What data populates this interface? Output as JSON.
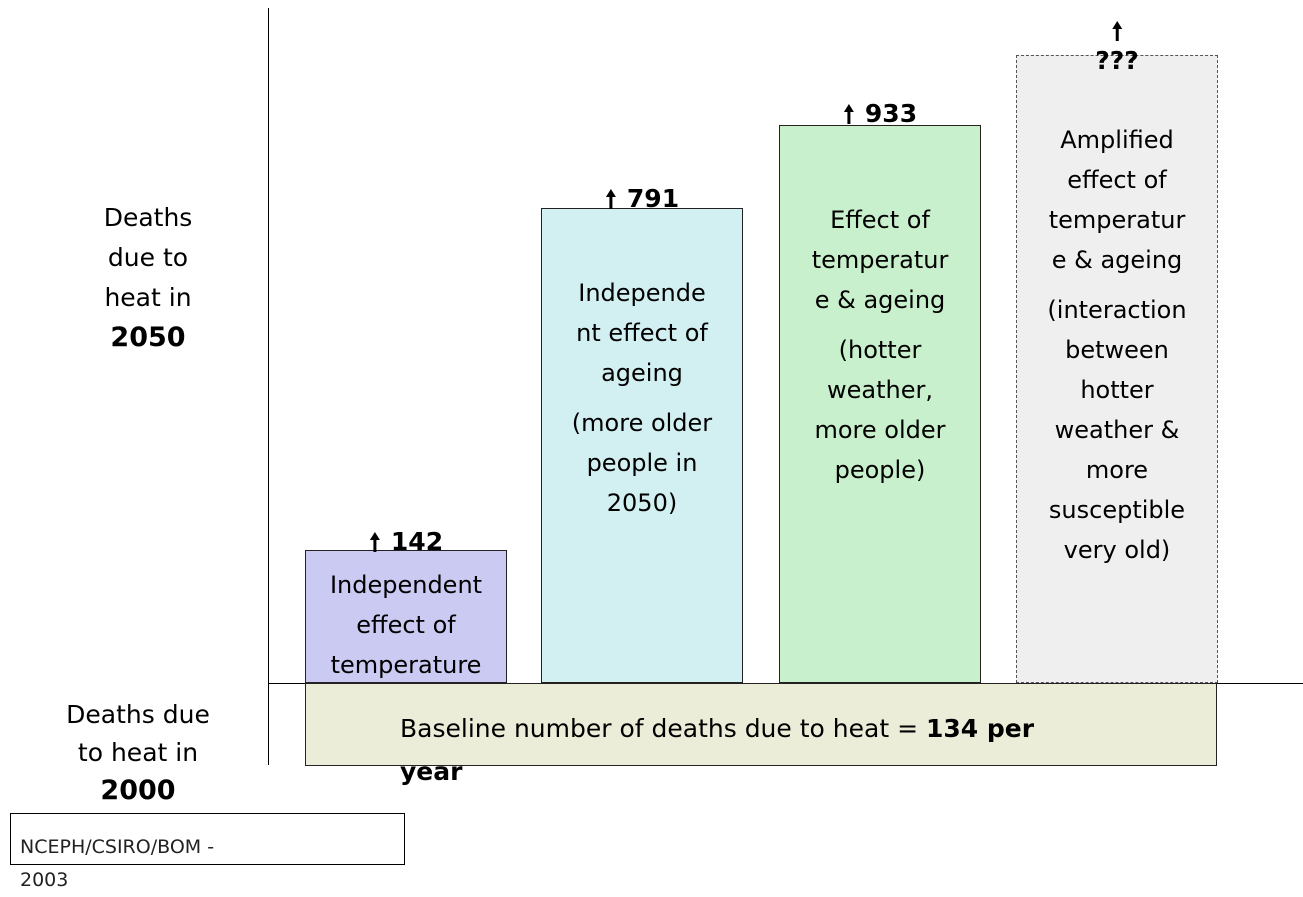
{
  "upper_label": {
    "lines": [
      "Deaths",
      "due to",
      "heat in"
    ],
    "year": "2050"
  },
  "lower_label": {
    "lines": [
      "Deaths due",
      "to heat in"
    ],
    "year": "2000"
  },
  "bars": [
    {
      "value": 142,
      "paragraphs": [
        [
          "Independent",
          "effect of",
          "temperature"
        ]
      ]
    },
    {
      "value": 791,
      "paragraphs": [
        [
          "Independe",
          "nt effect of",
          "ageing"
        ],
        [
          "(more older",
          "people in",
          "2050)"
        ]
      ]
    },
    {
      "value": 933,
      "paragraphs": [
        [
          "Effect of",
          "temperatur",
          "e & ageing"
        ],
        [
          "(hotter",
          "weather,",
          "more older",
          "people)"
        ]
      ]
    },
    {
      "value": "???",
      "paragraphs": [
        [
          "Amplified",
          "effect of",
          "temperatur",
          "e & ageing"
        ],
        [
          "(interaction",
          "between",
          "hotter",
          "weather &",
          "more",
          "susceptible",
          "very old)"
        ]
      ]
    }
  ],
  "baseline": {
    "text": "Baseline number of deaths due to heat =",
    "emphasis": "134 per",
    "overflow": "year"
  },
  "source": [
    "NCEPH/CSIRO/BOM -",
    "2003"
  ]
}
